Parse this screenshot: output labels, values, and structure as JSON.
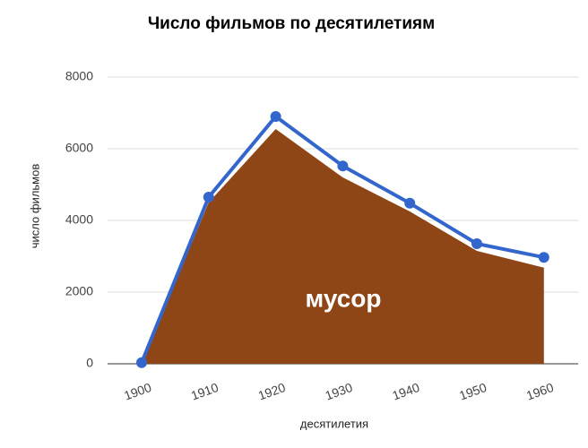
{
  "chart_data": {
    "type": "line",
    "title": "Число фильмов по десятилетиям",
    "x_label": "десятилетия",
    "y_label": "число фильмов",
    "categories": [
      "1900",
      "1910",
      "1920",
      "1930",
      "1940",
      "1950",
      "1960"
    ],
    "series": [
      {
        "name": "мусор",
        "type": "area",
        "color": "#8f4616",
        "values": [
          0,
          4500,
          6550,
          5200,
          4250,
          3150,
          2680
        ]
      },
      {
        "type": "line",
        "color": "#3366cc",
        "values": [
          30,
          4650,
          6900,
          5520,
          4480,
          3350,
          2970
        ]
      }
    ],
    "ylim": [
      0,
      8000
    ],
    "yticks": [
      0,
      2000,
      4000,
      6000,
      8000
    ],
    "grid": true
  }
}
